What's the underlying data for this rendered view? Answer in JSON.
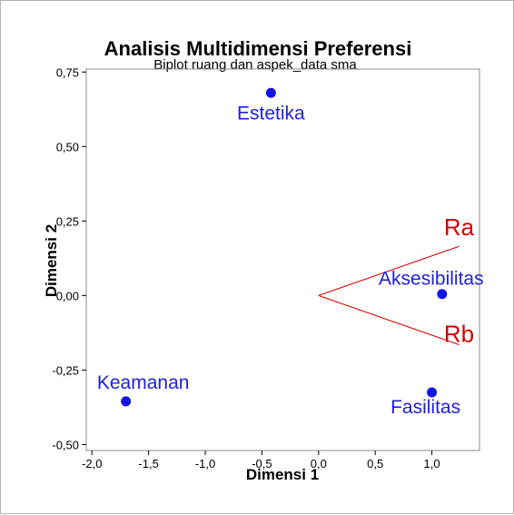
{
  "chart_data": {
    "type": "scatter",
    "title": "Analisis Multidimensi Preferensi",
    "subtitle": "Biplot ruang dan aspek_data sma",
    "xlabel": "Dimensi 1",
    "ylabel": "Dimensi 2",
    "xlim": [
      -2.05,
      1.42
    ],
    "ylim": [
      -0.52,
      0.76
    ],
    "x_ticks": [
      -2.0,
      -1.5,
      -1.0,
      -0.5,
      0.0,
      0.5,
      1.0
    ],
    "x_tick_labels": [
      "-2,0",
      "-1,5",
      "-1,0",
      "-0,5",
      "0,0",
      "0,5",
      "1,0"
    ],
    "y_ticks": [
      -0.5,
      -0.25,
      0.0,
      0.25,
      0.5,
      0.75
    ],
    "y_tick_labels": [
      "-0,50",
      "-0,25",
      "0,00",
      "0,25",
      "0,50",
      "0,75"
    ],
    "grid": false,
    "points": [
      {
        "label": "Estetika",
        "x": -0.42,
        "y": 0.68
      },
      {
        "label": "Aksesibilitas",
        "x": 1.09,
        "y": 0.005
      },
      {
        "label": "Keamanan",
        "x": -1.7,
        "y": -0.355
      },
      {
        "label": "Fasilitas",
        "x": 1.0,
        "y": -0.325
      }
    ],
    "vectors": [
      {
        "label": "Ra",
        "x": 1.24,
        "y": 0.165
      },
      {
        "label": "Rb",
        "x": 1.24,
        "y": -0.165
      }
    ],
    "colors": {
      "points": "#1414e6",
      "point_labels": "#1e1edc",
      "vectors": "#d20000"
    }
  }
}
